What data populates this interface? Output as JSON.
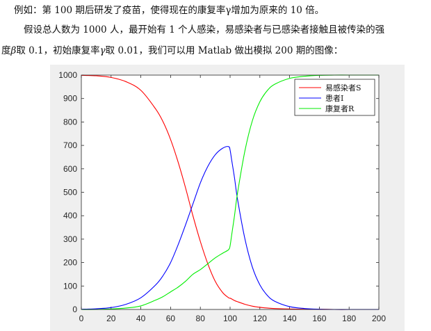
{
  "text": {
    "line1": "例如：第 100 期后研发了疫苗，使得现在的康复率γ增加为原来的 10 倍。",
    "line2": "假设总人数为 1000 人，最开始有 1 个人感染，易感染者与已感染者接触且被传染的强",
    "line3_pre": "度",
    "line3_sym1": "β",
    "line3_mid": "取 0.1，初始康复率",
    "line3_sym2": "γ",
    "line3_post": "取 0.01，我们可以用 Matlab 做出模拟 200 期的图像："
  },
  "chart_data": {
    "type": "line",
    "title": "",
    "xlabel": "",
    "ylabel": "",
    "xlim": [
      0,
      200
    ],
    "ylim": [
      0,
      1000
    ],
    "xticks": [
      0,
      20,
      40,
      60,
      80,
      100,
      120,
      140,
      160,
      180,
      200
    ],
    "yticks": [
      0,
      100,
      200,
      300,
      400,
      500,
      600,
      700,
      800,
      900,
      1000
    ],
    "grid": false,
    "legend_position": "top-right",
    "x": [
      0,
      10,
      20,
      30,
      40,
      50,
      55,
      60,
      65,
      70,
      75,
      80,
      85,
      90,
      95,
      99,
      100,
      101,
      103,
      105,
      110,
      115,
      120,
      125,
      130,
      140,
      150,
      160,
      170,
      180,
      190,
      200
    ],
    "series": [
      {
        "name": "易感染者S",
        "color": "#ff0000",
        "values": [
          999,
          997,
          990,
          972,
          935,
          855,
          800,
          725,
          630,
          520,
          400,
          290,
          195,
          120,
          72,
          50,
          48,
          45,
          38,
          33,
          22,
          14,
          9,
          6,
          4,
          2,
          1,
          1,
          0,
          0,
          0,
          0
        ]
      },
      {
        "name": "患者I",
        "color": "#0000ff",
        "values": [
          1,
          3,
          8,
          22,
          50,
          105,
          145,
          200,
          275,
          360,
          450,
          540,
          610,
          660,
          688,
          695,
          680,
          640,
          560,
          470,
          300,
          180,
          105,
          60,
          35,
          12,
          4,
          1,
          0,
          0,
          0,
          0
        ]
      },
      {
        "name": "康复者R",
        "color": "#00ee00",
        "values": [
          0,
          0,
          2,
          6,
          15,
          40,
          55,
          75,
          95,
          120,
          150,
          170,
          195,
          220,
          240,
          255,
          272,
          315,
          402,
          497,
          678,
          806,
          886,
          934,
          961,
          986,
          995,
          999,
          1000,
          1000,
          1000,
          1000
        ]
      }
    ]
  }
}
